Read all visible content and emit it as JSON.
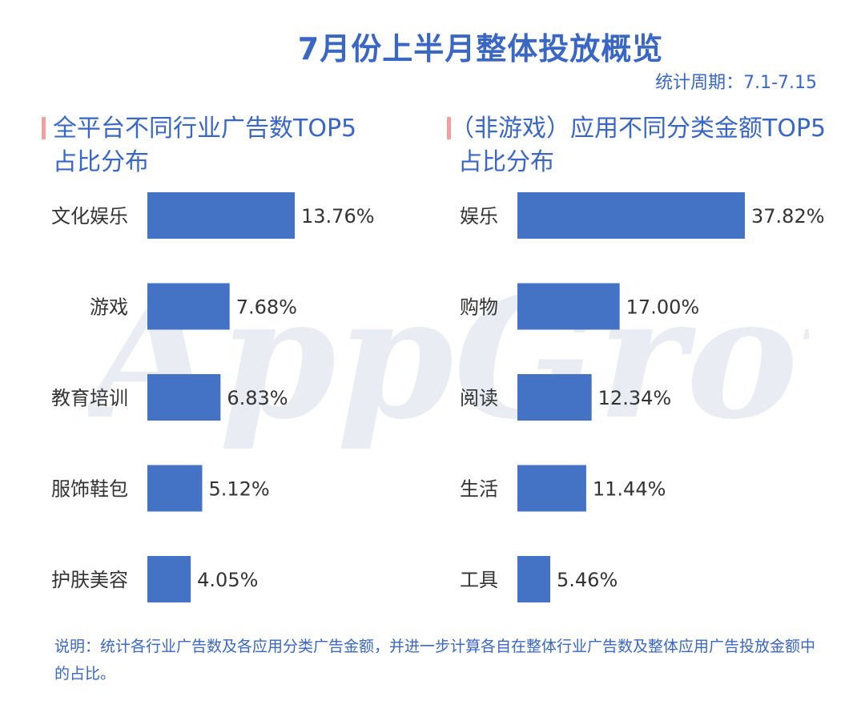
{
  "header": {
    "title": "7月份上半月整体投放概览",
    "period": "统计周期：7.1-7.15"
  },
  "watermark": {
    "text": "AppGrowing"
  },
  "chart_data": [
    {
      "type": "bar",
      "orientation": "horizontal",
      "title": "全平台不同行业广告数TOP5占比分布",
      "title_line1": "全平台不同行业广告数TOP5",
      "title_line2": "占比分布",
      "categories": [
        "文化娱乐",
        "游戏",
        "教育培训",
        "服饰鞋包",
        "护肤美容"
      ],
      "values": [
        13.76,
        7.68,
        6.83,
        5.12,
        4.05
      ],
      "value_labels": [
        "13.76%",
        "7.68%",
        "6.83%",
        "5.12%",
        "4.05%"
      ],
      "unit": "%",
      "grid": false,
      "bar_color": "#4472c4"
    },
    {
      "type": "bar",
      "orientation": "horizontal",
      "title": "（非游戏）应用不同分类金额TOP5占比分布",
      "title_line1": "（非游戏）应用不同分类金额TOP5",
      "title_line2": "占比分布",
      "categories": [
        "娱乐",
        "购物",
        "阅读",
        "生活",
        "工具"
      ],
      "values": [
        37.82,
        17.0,
        12.34,
        11.44,
        5.46
      ],
      "value_labels": [
        "37.82%",
        "17.00%",
        "12.34%",
        "11.44%",
        "5.46%"
      ],
      "unit": "%",
      "grid": false,
      "bar_color": "#4472c4"
    }
  ],
  "note": {
    "text": "说明：统计各行业广告数及各应用分类广告金额，并进一步计算各自在整体行业广告数及整体应用广告投放金额中的占比。"
  }
}
